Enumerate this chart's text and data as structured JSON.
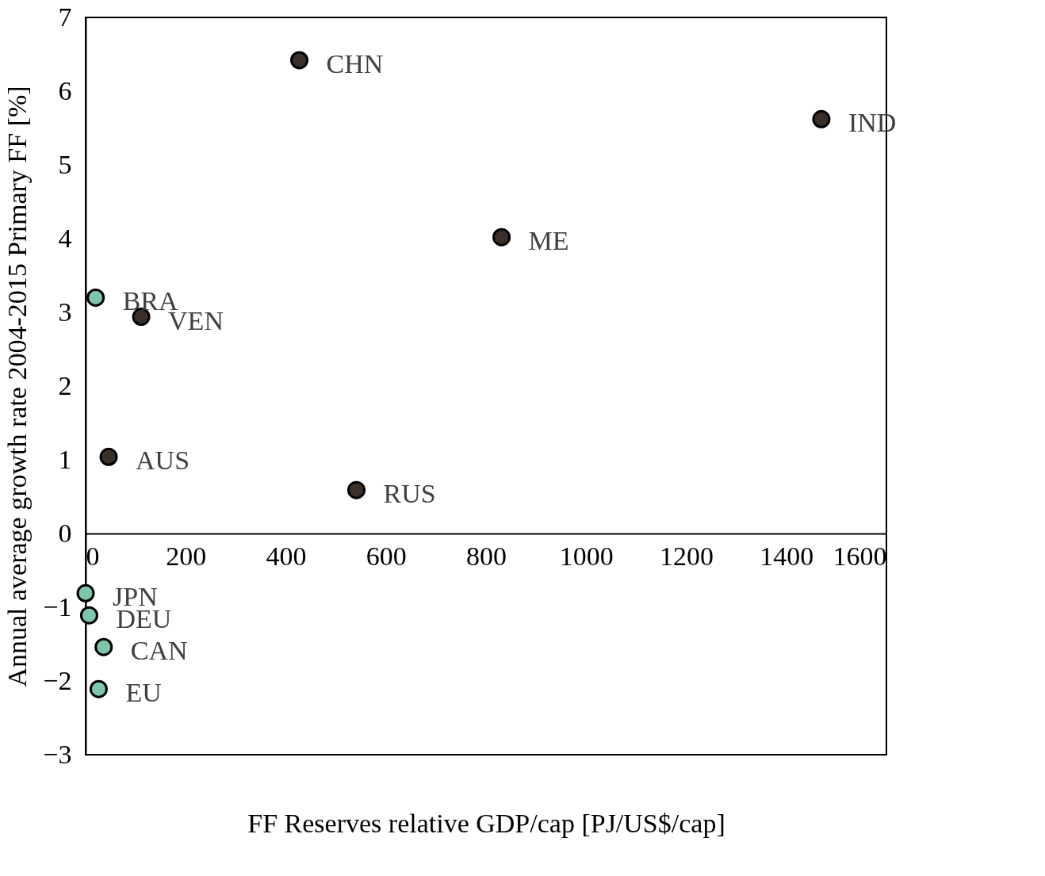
{
  "chart_data": {
    "type": "scatter",
    "xlabel": "FF Reserves relative GDP/cap [PJ/US$/cap]",
    "ylabel": "Annual average growth rate 2004-2015 Primary FF [%]",
    "xlim": [
      0,
      1600
    ],
    "xticks": [
      0,
      200,
      400,
      600,
      800,
      1000,
      1200,
      1400,
      1600
    ],
    "ylim": [
      -3,
      7
    ],
    "yticks": [
      -3,
      -2,
      -1,
      0,
      1,
      2,
      3,
      4,
      5,
      6,
      7
    ],
    "grid": false,
    "marker": "circle",
    "series": [
      {
        "color": "#3b2f29",
        "x": [
          427,
          1470,
          831,
          111,
          46,
          541
        ],
        "values": [
          6.42,
          5.62,
          4.02,
          2.94,
          1.04,
          0.59
        ]
      },
      {
        "color": "#80c6aa",
        "x": [
          20,
          0,
          7,
          36,
          26
        ],
        "values": [
          3.2,
          -0.81,
          -1.11,
          -1.54,
          -2.11
        ]
      }
    ],
    "annotations": [
      {
        "text": "CHN",
        "x": 427,
        "y": 6.42
      },
      {
        "text": "IND",
        "x": 1470,
        "y": 5.62
      },
      {
        "text": "ME",
        "x": 831,
        "y": 4.02
      },
      {
        "text": "VEN",
        "x": 111,
        "y": 2.94
      },
      {
        "text": "AUS",
        "x": 46,
        "y": 1.04
      },
      {
        "text": "RUS",
        "x": 541,
        "y": 0.59
      },
      {
        "text": "BRA",
        "x": 20,
        "y": 3.2
      },
      {
        "text": "JPN",
        "x": 0,
        "y": -0.81
      },
      {
        "text": "DEU",
        "x": 7,
        "y": -1.11
      },
      {
        "text": "CAN",
        "x": 36,
        "y": -1.54
      },
      {
        "text": "EU",
        "x": 26,
        "y": -2.11
      }
    ]
  }
}
